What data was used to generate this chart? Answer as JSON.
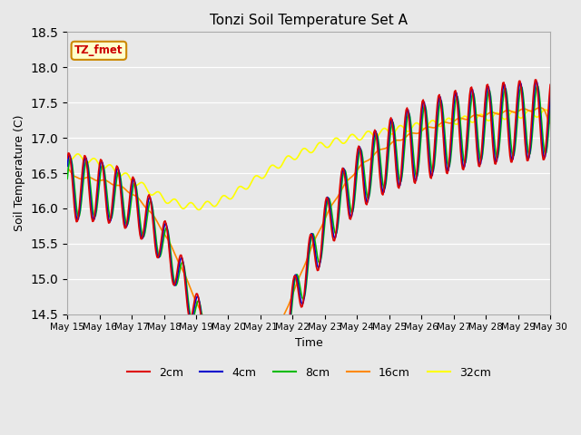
{
  "title": "Tonzi Soil Temperature Set A",
  "xlabel": "Time",
  "ylabel": "Soil Temperature (C)",
  "ylim": [
    14.5,
    18.5
  ],
  "yticks": [
    14.5,
    15.0,
    15.5,
    16.0,
    16.5,
    17.0,
    17.5,
    18.0,
    18.5
  ],
  "xtick_labels": [
    "May 15",
    "May 16",
    "May 17",
    "May 18",
    "May 19",
    "May 20",
    "May 21",
    "May 22",
    "May 23",
    "May 24",
    "May 25",
    "May 26",
    "May 27",
    "May 28",
    "May 29",
    "May 30"
  ],
  "annotation": "TZ_fmet",
  "fig_facecolor": "#e8e8e8",
  "plot_bg_color": "#e8e8e8",
  "legend_labels": [
    "2cm",
    "4cm",
    "8cm",
    "16cm",
    "32cm"
  ],
  "series_colors": [
    "#dd0000",
    "#0000cc",
    "#00bb00",
    "#ff8800",
    "#ffff00"
  ],
  "series_linewidth": 1.2,
  "days": 15
}
